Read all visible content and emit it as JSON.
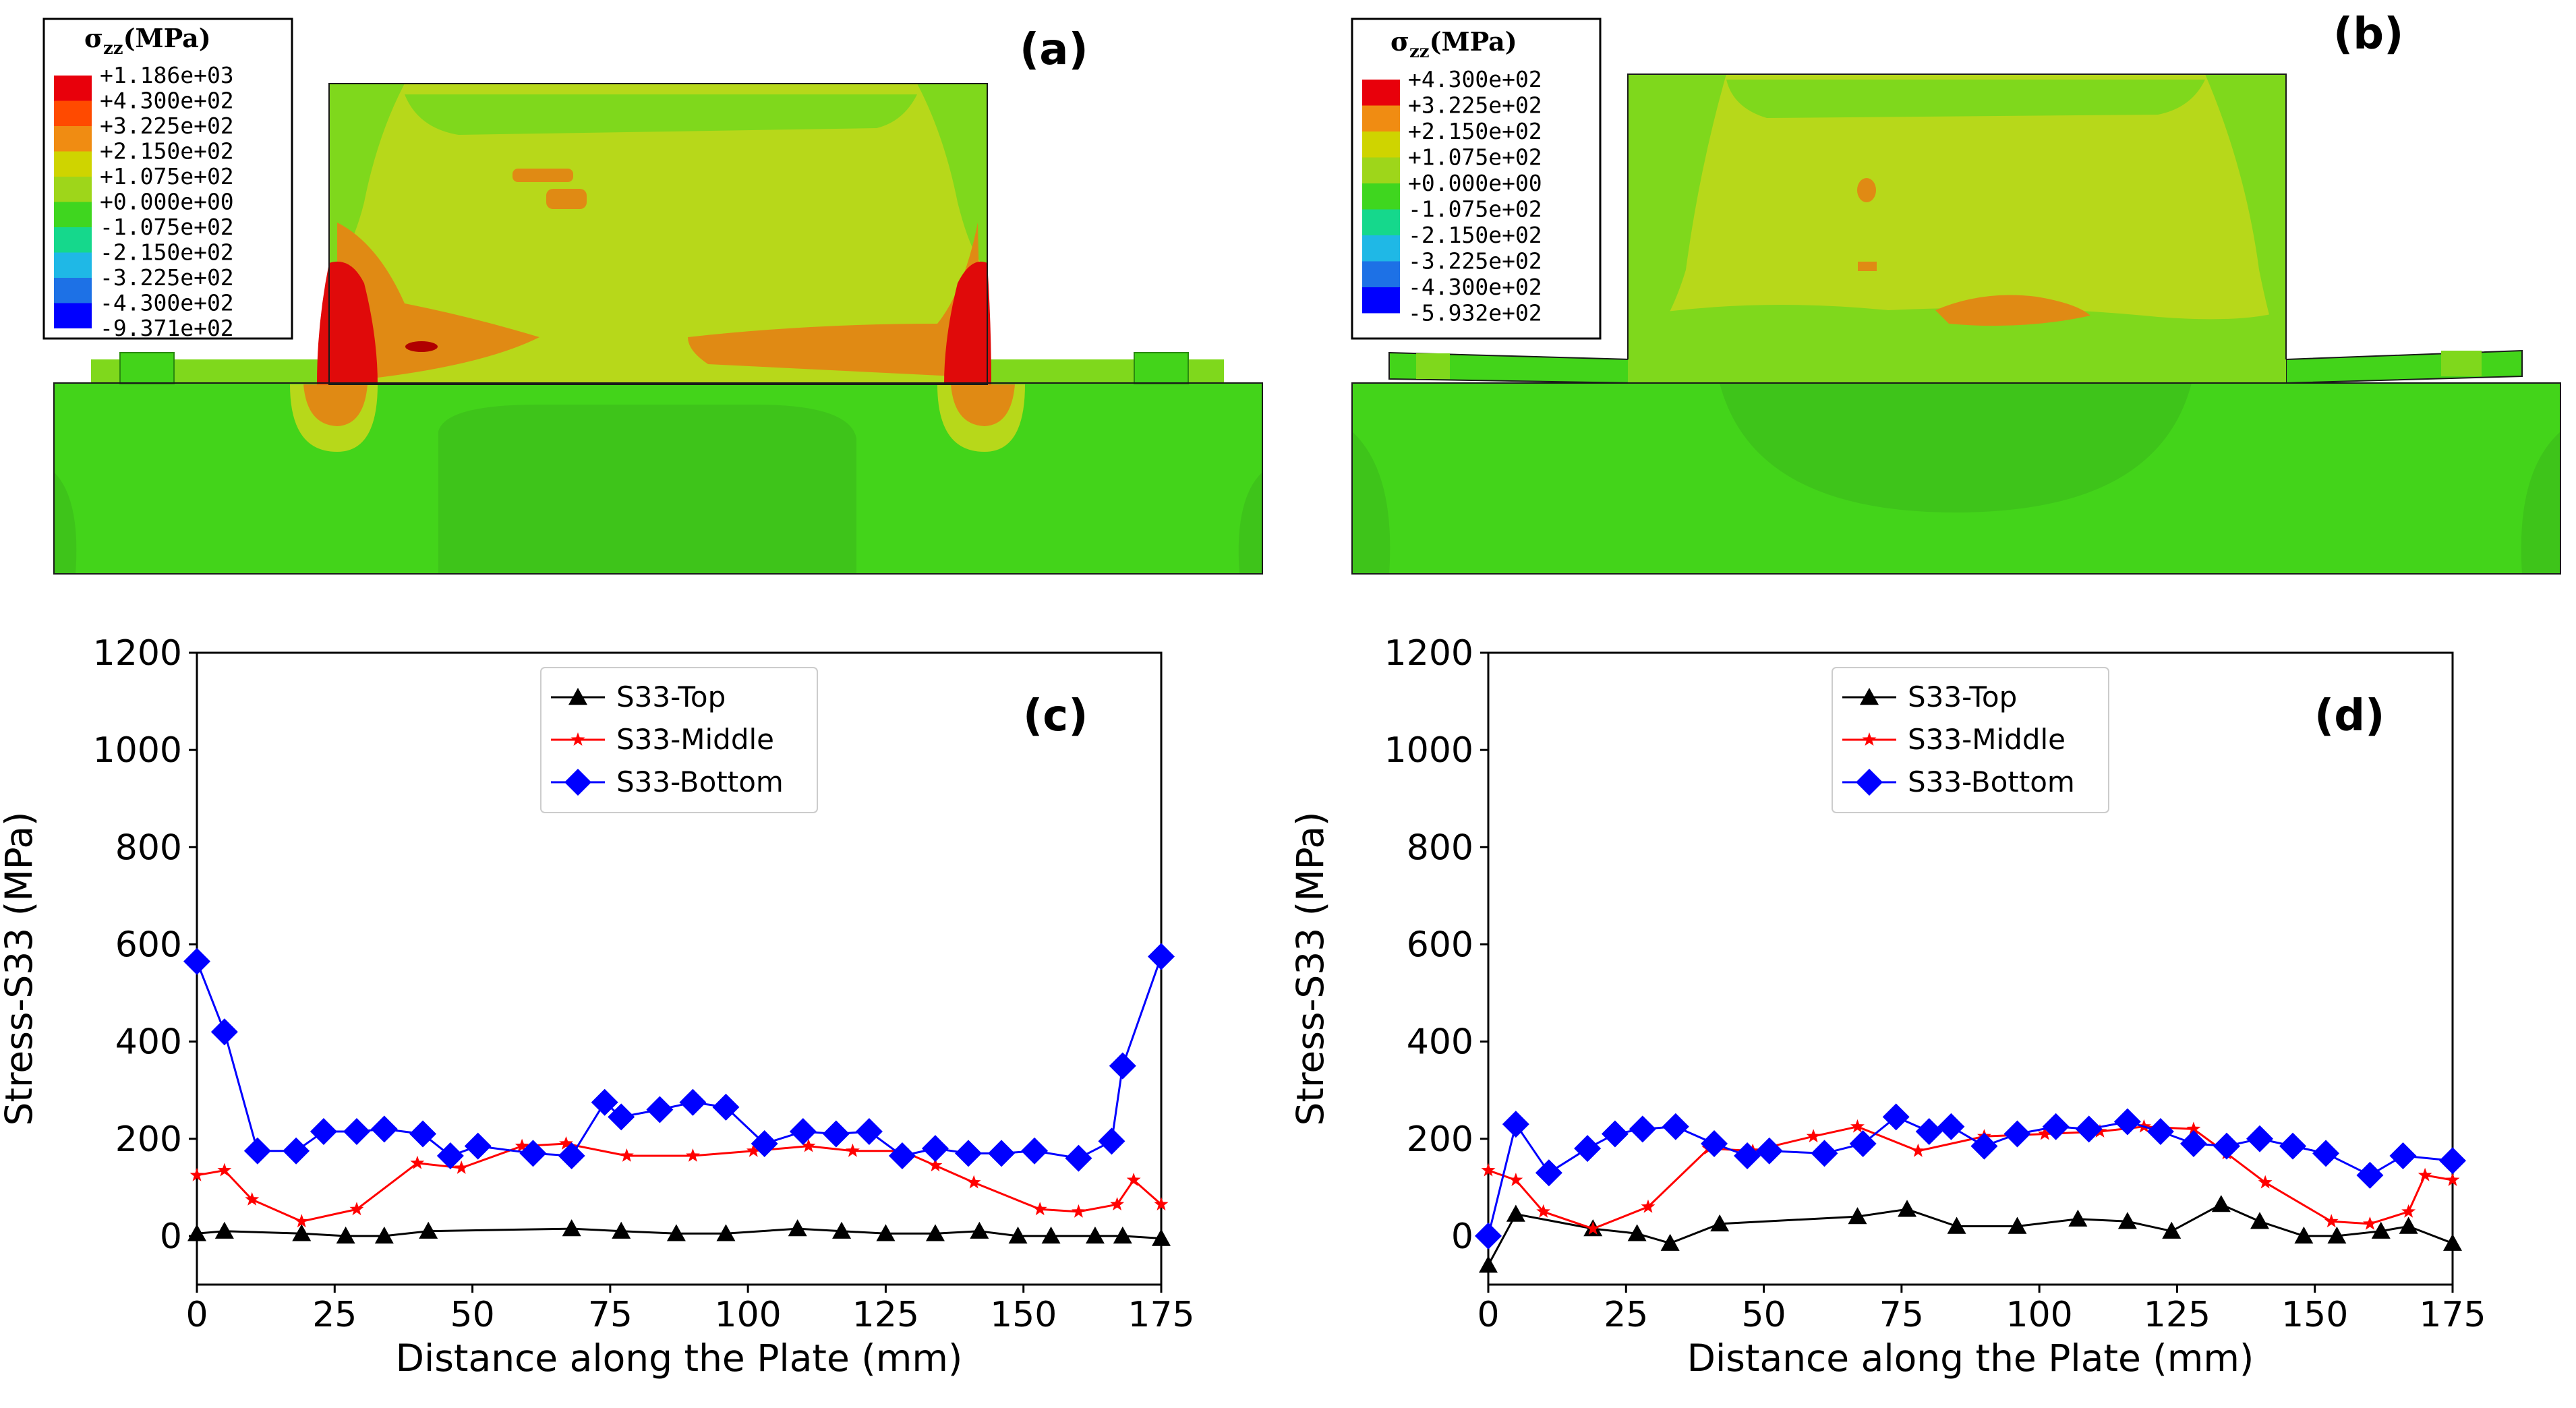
{
  "figure": {
    "panel_a_label": "(a)",
    "panel_b_label": "(b)",
    "panel_c_label": "(c)",
    "panel_d_label": "(d)"
  },
  "legend_a": {
    "title": "σ",
    "title_sub": "zz",
    "title_unit": "(MPa)",
    "labels": [
      "+1.186e+03",
      "+4.300e+02",
      "+3.225e+02",
      "+2.150e+02",
      "+1.075e+02",
      "+0.000e+00",
      "-1.075e+02",
      "-2.150e+02",
      "-3.225e+02",
      "-4.300e+02",
      "-9.371e+02"
    ],
    "colors": [
      "#e8000b",
      "#ff4a00",
      "#f08c12",
      "#cfd400",
      "#9ed61a",
      "#3fd61f",
      "#15d88c",
      "#1fb8e6",
      "#1d71e6",
      "#0000ff"
    ]
  },
  "legend_b": {
    "title": "σ",
    "title_sub": "zz",
    "title_unit": "(MPa)",
    "labels": [
      "+4.300e+02",
      "+3.225e+02",
      "+2.150e+02",
      "+1.075e+02",
      "+0.000e+00",
      "-1.075e+02",
      "-2.150e+02",
      "-3.225e+02",
      "-4.300e+02",
      "-5.932e+02"
    ],
    "colors": [
      "#e8000b",
      "#f08c12",
      "#cfd400",
      "#9ed61a",
      "#3fd61f",
      "#15d88c",
      "#1fb8e6",
      "#1d71e6",
      "#0000ff"
    ]
  },
  "fea_colors": {
    "base": "#43d41a",
    "light_green": "#7fd81c",
    "yellow_green": "#b7d81a",
    "orange": "#e08a14",
    "red": "#e00a0a",
    "dark_red": "#b00000",
    "pale_green": "#3ec41a"
  },
  "chart_data": [
    {
      "type": "line",
      "panel": "(c)",
      "xlabel": "Distance along the Plate (mm)",
      "ylabel": "Stress-S33 (MPa)",
      "xlim": [
        0,
        175
      ],
      "ylim": [
        -100,
        1200
      ],
      "xticks": [
        0,
        25,
        50,
        75,
        100,
        125,
        150,
        175
      ],
      "yticks": [
        0,
        200,
        400,
        600,
        800,
        1000,
        1200
      ],
      "legend_position": "top-center",
      "series": [
        {
          "name": "S33-Top",
          "color": "#000000",
          "marker": "triangle",
          "x": [
            0,
            5,
            19,
            27,
            34,
            42,
            68,
            77,
            87,
            96,
            109,
            117,
            125,
            134,
            142,
            149,
            155,
            163,
            168,
            175
          ],
          "y": [
            5,
            10,
            5,
            0,
            0,
            10,
            15,
            10,
            5,
            5,
            15,
            10,
            5,
            5,
            10,
            0,
            0,
            0,
            0,
            -5
          ]
        },
        {
          "name": "S33-Middle",
          "color": "#ff0000",
          "marker": "star",
          "x": [
            0,
            5,
            10,
            19,
            29,
            40,
            48,
            59,
            67,
            78,
            90,
            101,
            111,
            119,
            128,
            134,
            141,
            153,
            160,
            167,
            170,
            175
          ],
          "y": [
            125,
            135,
            75,
            30,
            55,
            150,
            140,
            185,
            190,
            165,
            165,
            175,
            185,
            175,
            175,
            145,
            110,
            55,
            50,
            65,
            115,
            65
          ],
          "labels_last": false
        },
        {
          "name": "S33-Bottom",
          "color": "#0000ff",
          "marker": "diamond",
          "x": [
            0,
            5,
            11,
            18,
            23,
            29,
            34,
            41,
            46,
            51,
            61,
            68,
            74,
            77,
            84,
            90,
            96,
            103,
            110,
            116,
            122,
            128,
            134,
            140,
            146,
            152,
            160,
            166,
            168,
            175
          ],
          "y": [
            565,
            420,
            175,
            175,
            215,
            215,
            220,
            210,
            165,
            185,
            170,
            165,
            275,
            245,
            260,
            275,
            265,
            190,
            215,
            210,
            215,
            165,
            180,
            170,
            170,
            175,
            160,
            195,
            350,
            575
          ]
        }
      ]
    },
    {
      "type": "line",
      "panel": "(d)",
      "xlabel": "Distance along the Plate (mm)",
      "ylabel": "Stress-S33 (MPa)",
      "xlim": [
        0,
        175
      ],
      "ylim": [
        -100,
        1200
      ],
      "xticks": [
        0,
        25,
        50,
        75,
        100,
        125,
        150,
        175
      ],
      "yticks": [
        0,
        200,
        400,
        600,
        800,
        1000,
        1200
      ],
      "legend_position": "top-center",
      "series": [
        {
          "name": "S33-Top",
          "color": "#000000",
          "marker": "triangle",
          "x": [
            0,
            5,
            19,
            27,
            33,
            42,
            67,
            76,
            85,
            96,
            107,
            116,
            124,
            133,
            140,
            148,
            154,
            162,
            167,
            175
          ],
          "y": [
            -60,
            45,
            15,
            5,
            -15,
            25,
            40,
            55,
            20,
            20,
            35,
            30,
            10,
            65,
            30,
            0,
            0,
            10,
            20,
            -15
          ]
        },
        {
          "name": "S33-Middle",
          "color": "#ff0000",
          "marker": "star",
          "x": [
            0,
            5,
            10,
            19,
            29,
            40,
            48,
            59,
            67,
            78,
            90,
            101,
            111,
            119,
            128,
            134,
            141,
            153,
            160,
            167,
            170,
            175
          ],
          "y": [
            135,
            115,
            50,
            15,
            60,
            180,
            175,
            205,
            225,
            175,
            205,
            210,
            215,
            225,
            220,
            170,
            110,
            30,
            25,
            50,
            125,
            115
          ]
        },
        {
          "name": "S33-Bottom",
          "color": "#0000ff",
          "marker": "diamond",
          "x": [
            0,
            5,
            11,
            18,
            23,
            28,
            34,
            41,
            47,
            51,
            61,
            68,
            74,
            80,
            84,
            90,
            96,
            103,
            109,
            116,
            122,
            128,
            134,
            140,
            146,
            152,
            160,
            166,
            175
          ],
          "y": [
            0,
            230,
            130,
            180,
            210,
            220,
            225,
            190,
            165,
            175,
            170,
            190,
            245,
            215,
            225,
            185,
            210,
            225,
            220,
            235,
            215,
            190,
            185,
            200,
            185,
            170,
            125,
            165,
            155
          ]
        }
      ]
    }
  ]
}
